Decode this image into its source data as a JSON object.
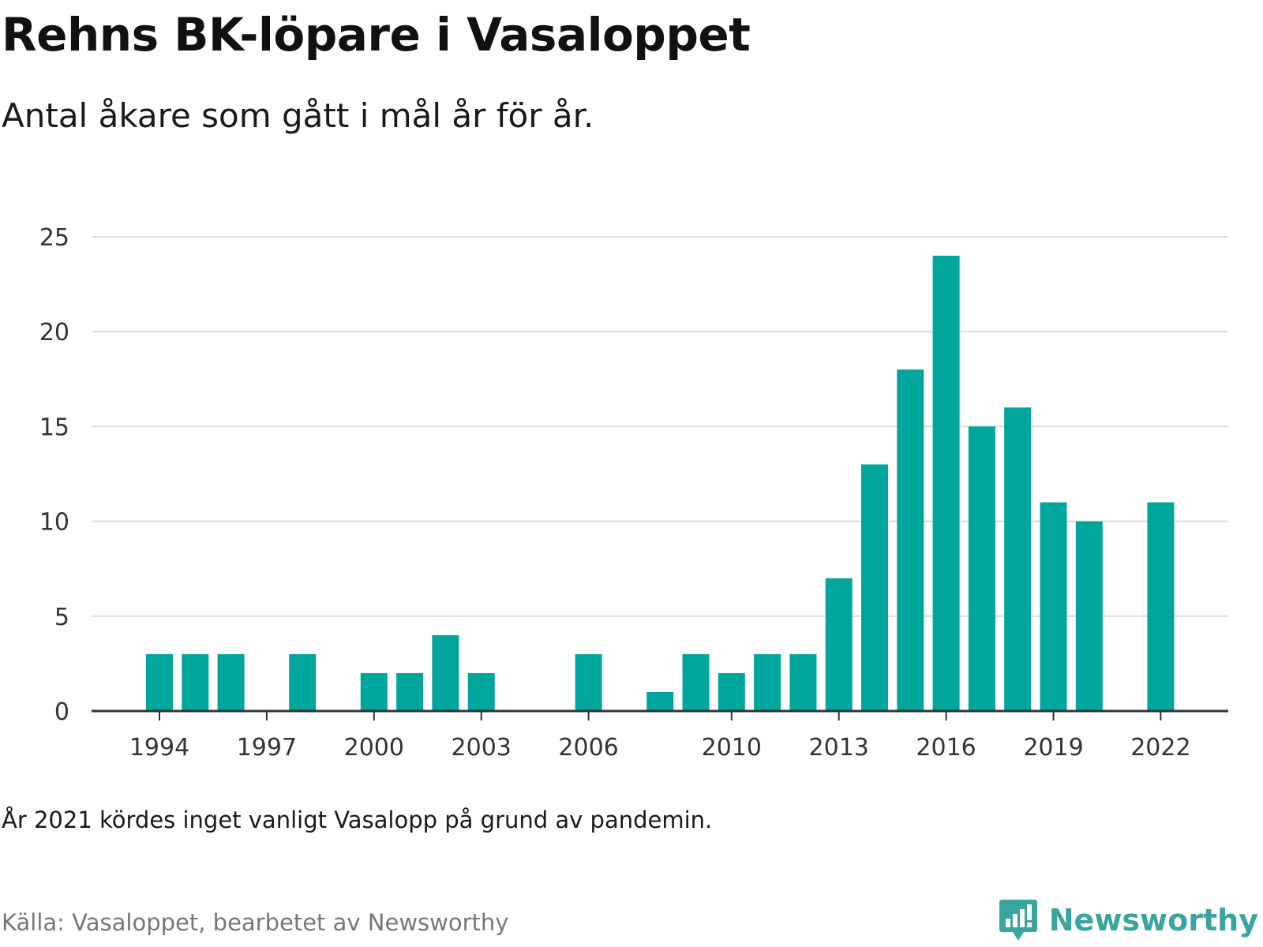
{
  "title": "Rehns BK-löpare i Vasaloppet",
  "subtitle": "Antal åkare som gått i mål år för år.",
  "note": "År 2021 kördes inget vanligt Vasalopp på grund av pandemin.",
  "source": "Källa: Vasaloppet, bearbetet av Newsworthy",
  "logo": {
    "text": "Newsworthy",
    "icon": "newsworthy-bar-chart-bubble-icon",
    "color": "#3aa59c"
  },
  "chart_data": {
    "type": "bar",
    "bar_color": "#00a59b",
    "grid": true,
    "ylim": [
      0,
      25
    ],
    "yticks": [
      0,
      5,
      10,
      15,
      20,
      25
    ],
    "xticks": [
      "1994",
      "1997",
      "2000",
      "2003",
      "2006",
      "2010",
      "2013",
      "2016",
      "2019",
      "2022"
    ],
    "categories": [
      "1994",
      "1995",
      "1996",
      "1997",
      "1998",
      "1999",
      "2000",
      "2001",
      "2002",
      "2003",
      "2004",
      "2005",
      "2006",
      "2007",
      "2008",
      "2009",
      "2010",
      "2011",
      "2012",
      "2013",
      "2014",
      "2015",
      "2016",
      "2017",
      "2018",
      "2019",
      "2020",
      "2021",
      "2022"
    ],
    "values": [
      3,
      3,
      3,
      null,
      3,
      null,
      2,
      2,
      4,
      2,
      null,
      null,
      3,
      null,
      1,
      3,
      2,
      3,
      3,
      7,
      13,
      18,
      24,
      15,
      16,
      11,
      10,
      null,
      11
    ]
  }
}
